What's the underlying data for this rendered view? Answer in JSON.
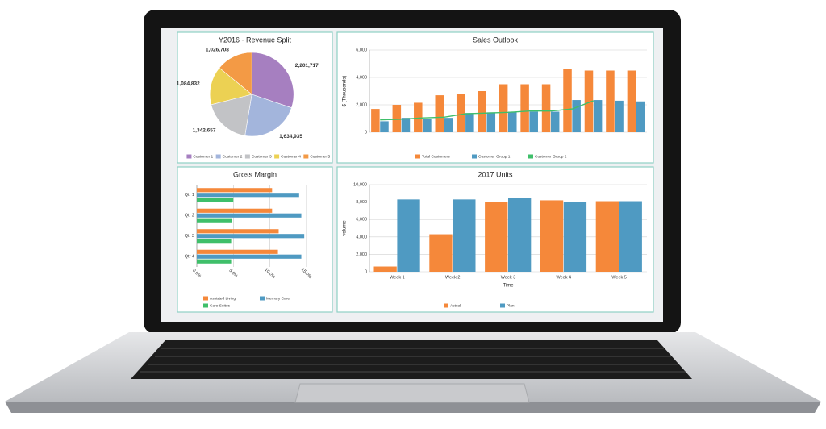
{
  "chart_data": [
    {
      "type": "pie",
      "title": "Y2016 - Revenue Split",
      "categories": [
        "Customer 1",
        "Customer 2",
        "Customer 3",
        "Customer 4",
        "Customer 5"
      ],
      "values": [
        2201717,
        1634935,
        1342657,
        1084832,
        1026708
      ],
      "value_labels": [
        "2,201,717",
        "1,634,935",
        "1,342,657",
        "1,084,832",
        "1,026,708"
      ],
      "colors": [
        "#a67fc0",
        "#a3b5dc",
        "#c2c3c6",
        "#ecd153",
        "#f39a45"
      ],
      "legend": "bottom"
    },
    {
      "type": "bar",
      "title": "Sales Outlook",
      "ylabel": "$ (Thousands)",
      "categories": [
        null,
        null,
        null,
        null,
        null,
        null,
        null,
        null,
        null,
        null,
        null,
        null,
        null
      ],
      "series": [
        {
          "name": "Total Customers",
          "color": "#f5883a",
          "values": [
            1700,
            2000,
            2150,
            2700,
            2800,
            3000,
            3500,
            3500,
            3500,
            4600,
            4500,
            4500,
            4500
          ]
        },
        {
          "name": "Customer Group 1",
          "color": "#4f9ac2",
          "values": [
            800,
            1050,
            1000,
            1050,
            1400,
            1450,
            1500,
            1500,
            1500,
            2350,
            2350,
            2300,
            2250
          ]
        },
        {
          "name": "Customer Group 2",
          "color": "#3fbf6a",
          "type": "line",
          "values": [
            900,
            950,
            1050,
            1100,
            1350,
            1400,
            1450,
            1550,
            1550,
            1700,
            2300,
            null,
            null
          ]
        }
      ],
      "ylim": [
        0,
        6000
      ],
      "yticks": [
        0,
        {
          "value": 2000,
          "label": "2,000"
        },
        {
          "value": 4000,
          "label": "4,000"
        },
        {
          "value": 6000,
          "label": "6,000"
        }
      ],
      "grid": true,
      "legend": "bottom"
    },
    {
      "type": "bar",
      "orientation": "horizontal",
      "title": "Gross Margin",
      "categories": [
        "Qtr 1",
        "Qtr 2",
        "Qtr 3",
        "Qtr 4"
      ],
      "series": [
        {
          "name": "Assisted Living",
          "color": "#f5883a",
          "values": [
            10.3,
            10.3,
            11.2,
            11.1
          ]
        },
        {
          "name": "Memory Care",
          "color": "#4f9ac2",
          "values": [
            14.0,
            14.3,
            14.7,
            14.3
          ]
        },
        {
          "name": "Care Suites",
          "color": "#3fbf6a",
          "values": [
            5.0,
            4.8,
            4.7,
            4.7
          ]
        }
      ],
      "xlim": [
        0,
        17
      ],
      "xticks": [
        {
          "value": 0,
          "label": "0.0%"
        },
        {
          "value": 5,
          "label": "5.0%"
        },
        {
          "value": 10,
          "label": "10.0%"
        },
        {
          "value": 15,
          "label": "15.0%"
        }
      ],
      "grid": true,
      "legend": "bottom"
    },
    {
      "type": "bar",
      "title": "2017 Units",
      "xlabel": "Time",
      "ylabel": "volume",
      "categories": [
        "Week 1",
        "Week 2",
        "Week 3",
        "Week 4",
        "Week 5"
      ],
      "series": [
        {
          "name": "Actual",
          "color": "#f5883a",
          "values": [
            600,
            4300,
            8000,
            8200,
            8100
          ]
        },
        {
          "name": "Plan",
          "color": "#4f9ac2",
          "values": [
            8300,
            8300,
            8500,
            8000,
            8100
          ]
        }
      ],
      "ylim": [
        0,
        10000
      ],
      "yticks": [
        0,
        {
          "value": 2000,
          "label": "2,000"
        },
        {
          "value": 4000,
          "label": "4,000"
        },
        {
          "value": 6000,
          "label": "6,000"
        },
        {
          "value": 8000,
          "label": "8,000"
        },
        {
          "value": 10000,
          "label": "10,000"
        }
      ],
      "grid": true,
      "legend": "bottom"
    }
  ]
}
